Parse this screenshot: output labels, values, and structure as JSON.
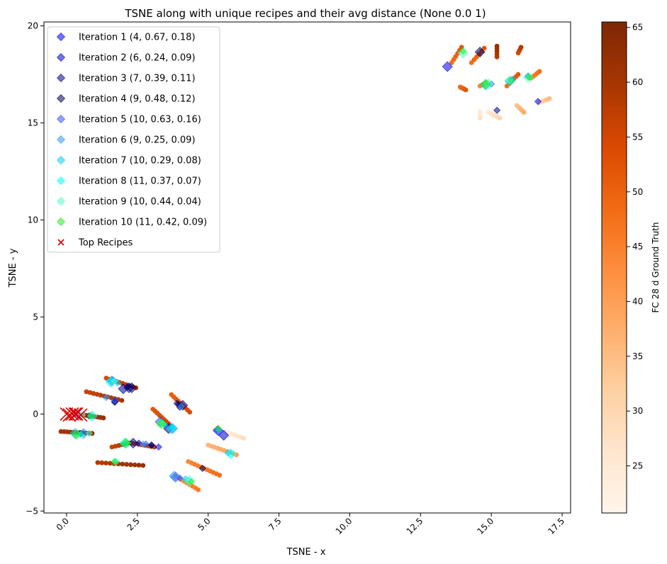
{
  "chart_data": {
    "type": "scatter",
    "title": "TSNE along with unique recipes and their avg distance (None 0.0 1)",
    "xlabel": "TSNE - x",
    "ylabel": "TSNE - y",
    "xlim": [
      -0.8,
      17.8
    ],
    "ylim": [
      -5.1,
      20.2
    ],
    "x_ticks": [
      "0.0",
      "2.5",
      "5.0",
      "7.5",
      "10.0",
      "12.5",
      "15.0",
      "17.5"
    ],
    "y_ticks": [
      "−5",
      "0",
      "5",
      "10",
      "15",
      "20"
    ],
    "x_tick_values": [
      0,
      2.5,
      5,
      7.5,
      10,
      12.5,
      15,
      17.5
    ],
    "y_tick_values": [
      -5,
      0,
      5,
      10,
      15,
      20
    ],
    "grid": false,
    "legend_position": "upper-left",
    "colorbar": {
      "label": "FC 28 d Ground Truth",
      "min": 20.7,
      "max": 65.5,
      "ticks": [
        "25",
        "30",
        "35",
        "40",
        "45",
        "50",
        "55",
        "60",
        "65"
      ],
      "tick_values": [
        25,
        30,
        35,
        40,
        45,
        50,
        55,
        60,
        65
      ],
      "colormap": "Oranges",
      "stops": [
        "#fff5eb",
        "#fee6ce",
        "#fdd0a2",
        "#fdae6b",
        "#fd8d3c",
        "#f16913",
        "#d94801",
        "#a63603",
        "#7f2704"
      ]
    },
    "background_points": {
      "name": "",
      "color_by": "FC 28 d Ground Truth",
      "strands": [
        {
          "from": [
            -0.2,
            -0.9
          ],
          "to": [
            0.9,
            -1.0
          ],
          "n": 11,
          "value": 62
        },
        {
          "from": [
            0.6,
            -0.05
          ],
          "to": [
            1.3,
            -0.2
          ],
          "n": 8,
          "value": 60
        },
        {
          "from": [
            0.7,
            1.15
          ],
          "to": [
            1.95,
            0.7
          ],
          "n": 11,
          "value": 58
        },
        {
          "from": [
            1.4,
            1.85
          ],
          "to": [
            2.45,
            1.35
          ],
          "n": 10,
          "value": 56
        },
        {
          "from": [
            1.1,
            -2.5
          ],
          "to": [
            2.7,
            -2.65
          ],
          "n": 12,
          "value": 60
        },
        {
          "from": [
            1.6,
            -1.7
          ],
          "to": [
            2.2,
            -1.5
          ],
          "n": 6,
          "value": 58
        },
        {
          "from": [
            2.3,
            -1.5
          ],
          "to": [
            3.1,
            -1.7
          ],
          "n": 8,
          "value": 56
        },
        {
          "from": [
            3.05,
            0.25
          ],
          "to": [
            3.75,
            -0.7
          ],
          "n": 10,
          "value": 54
        },
        {
          "from": [
            3.7,
            1.0
          ],
          "to": [
            4.35,
            0.1
          ],
          "n": 9,
          "value": 52
        },
        {
          "from": [
            3.85,
            -3.2
          ],
          "to": [
            4.65,
            -3.9
          ],
          "n": 9,
          "value": 44
        },
        {
          "from": [
            4.3,
            -2.45
          ],
          "to": [
            5.4,
            -3.15
          ],
          "n": 11,
          "value": 46
        },
        {
          "from": [
            5.0,
            -1.6
          ],
          "to": [
            6.0,
            -2.1
          ],
          "n": 10,
          "value": 38
        },
        {
          "from": [
            5.6,
            -0.9
          ],
          "to": [
            6.25,
            -1.25
          ],
          "n": 7,
          "value": 26
        },
        {
          "from": [
            13.6,
            18.1
          ],
          "to": [
            13.95,
            18.9
          ],
          "n": 6,
          "value": 50
        },
        {
          "from": [
            14.3,
            18.1
          ],
          "to": [
            14.75,
            18.85
          ],
          "n": 6,
          "value": 50
        },
        {
          "from": [
            15.2,
            18.4
          ],
          "to": [
            15.2,
            18.95
          ],
          "n": 5,
          "value": 60
        },
        {
          "from": [
            15.95,
            18.6
          ],
          "to": [
            16.05,
            18.9
          ],
          "n": 4,
          "value": 56
        },
        {
          "from": [
            13.9,
            16.85
          ],
          "to": [
            14.1,
            16.7
          ],
          "n": 5,
          "value": 50
        },
        {
          "from": [
            14.6,
            16.9
          ],
          "to": [
            14.8,
            17.05
          ],
          "n": 4,
          "value": 46
        },
        {
          "from": [
            15.55,
            16.9
          ],
          "to": [
            15.95,
            17.5
          ],
          "n": 6,
          "value": 50
        },
        {
          "from": [
            16.4,
            17.3
          ],
          "to": [
            16.7,
            17.65
          ],
          "n": 5,
          "value": 46
        },
        {
          "from": [
            15.9,
            15.9
          ],
          "to": [
            16.15,
            15.55
          ],
          "n": 5,
          "value": 36
        },
        {
          "from": [
            16.7,
            16.05
          ],
          "to": [
            17.05,
            16.25
          ],
          "n": 5,
          "value": 33
        },
        {
          "from": [
            14.9,
            15.55
          ],
          "to": [
            15.3,
            15.25
          ],
          "n": 5,
          "value": 28
        },
        {
          "from": [
            14.6,
            15.6
          ],
          "to": [
            14.6,
            15.25
          ],
          "n": 4,
          "value": 25
        }
      ]
    },
    "series": [
      {
        "name": "Iteration 1 (4, 0.67, 0.18)",
        "color": "#0000ee",
        "points": [
          [
            13.45,
            17.9
          ],
          [
            16.65,
            16.1
          ],
          [
            3.25,
            -1.7
          ],
          [
            5.35,
            -0.85
          ]
        ]
      },
      {
        "name": "Iteration 2 (6, 0.24, 0.09)",
        "color": "#0000cc",
        "points": [
          [
            2.2,
            1.35
          ],
          [
            1.7,
            0.65
          ],
          [
            3.0,
            -1.6
          ],
          [
            5.55,
            -1.1
          ],
          [
            16.3,
            17.4
          ],
          [
            2.55,
            -1.5
          ]
        ]
      },
      {
        "name": "Iteration 3 (7, 0.39, 0.11)",
        "color": "#000088",
        "points": [
          [
            2.35,
            -1.5
          ],
          [
            3.9,
            0.55
          ],
          [
            15.2,
            15.65
          ],
          [
            4.1,
            0.45
          ],
          [
            2.15,
            1.4
          ],
          [
            4.0,
            0.35
          ],
          [
            2.0,
            1.3
          ]
        ]
      },
      {
        "name": "Iteration 4 (9, 0.48, 0.12)",
        "color": "#000055",
        "points": [
          [
            14.6,
            18.65
          ],
          [
            3.95,
            0.5
          ],
          [
            4.8,
            -2.8
          ],
          [
            2.3,
            1.35
          ],
          [
            0.8,
            -0.1
          ],
          [
            0.5,
            -1.0
          ],
          [
            3.6,
            -0.75
          ],
          [
            3.0,
            -1.6
          ],
          [
            1.7,
            0.6
          ]
        ]
      },
      {
        "name": "Iteration 5 (10, 0.63, 0.16)",
        "color": "#3355ff",
        "points": [
          [
            3.85,
            -3.25
          ],
          [
            4.0,
            -3.3
          ],
          [
            1.7,
            0.7
          ],
          [
            3.3,
            -0.4
          ],
          [
            5.3,
            -0.8
          ],
          [
            15.0,
            17.0
          ],
          [
            1.6,
            1.7
          ],
          [
            2.8,
            -1.55
          ],
          [
            3.5,
            -0.6
          ],
          [
            0.4,
            -0.05
          ]
        ]
      },
      {
        "name": "Iteration 6 (9, 0.25, 0.09)",
        "color": "#3399ff",
        "points": [
          [
            3.75,
            -0.75
          ],
          [
            1.4,
            0.85
          ],
          [
            5.4,
            -0.85
          ],
          [
            0.6,
            -1.0
          ],
          [
            2.7,
            -1.55
          ],
          [
            15.75,
            17.25
          ],
          [
            3.8,
            -3.2
          ],
          [
            1.65,
            1.75
          ],
          [
            4.05,
            0.4
          ]
        ]
      },
      {
        "name": "Iteration 7 (10, 0.29, 0.08)",
        "color": "#00ccff",
        "points": [
          [
            3.7,
            -0.75
          ],
          [
            1.6,
            1.75
          ],
          [
            5.7,
            -2.0
          ],
          [
            15.65,
            17.15
          ],
          [
            4.2,
            -3.35
          ],
          [
            2.1,
            -1.5
          ],
          [
            0.3,
            -1.0
          ],
          [
            3.45,
            -0.55
          ],
          [
            1.8,
            1.6
          ],
          [
            14.8,
            16.95
          ]
        ]
      },
      {
        "name": "Iteration 8 (11, 0.37, 0.07)",
        "color": "#00ffff",
        "points": [
          [
            1.55,
            1.65
          ],
          [
            3.75,
            -0.7
          ],
          [
            0.5,
            -1.05
          ],
          [
            5.8,
            -2.05
          ],
          [
            15.7,
            17.2
          ],
          [
            4.3,
            -3.4
          ],
          [
            2.05,
            -1.5
          ],
          [
            1.7,
            -2.45
          ],
          [
            3.35,
            -0.45
          ],
          [
            0.9,
            -0.1
          ],
          [
            16.35,
            17.35
          ]
        ]
      },
      {
        "name": "Iteration 9 (10, 0.44, 0.04)",
        "color": "#55ffcc",
        "points": [
          [
            14.0,
            18.6
          ],
          [
            1.75,
            -2.45
          ],
          [
            0.55,
            -0.05
          ],
          [
            16.3,
            17.35
          ],
          [
            3.4,
            -0.5
          ],
          [
            15.65,
            17.15
          ],
          [
            4.35,
            -3.45
          ],
          [
            1.7,
            1.7
          ],
          [
            0.8,
            -1.0
          ],
          [
            14.9,
            17.0
          ]
        ]
      },
      {
        "name": "Iteration 10 (11, 0.42, 0.09)",
        "color": "#22ee22",
        "points": [
          [
            0.35,
            -1.05
          ],
          [
            4.4,
            -3.5
          ],
          [
            1.7,
            -2.45
          ],
          [
            2.1,
            -1.5
          ],
          [
            5.35,
            -0.75
          ],
          [
            14.0,
            18.7
          ],
          [
            14.8,
            17.0
          ],
          [
            16.35,
            17.35
          ],
          [
            15.7,
            17.2
          ],
          [
            3.35,
            -0.5
          ],
          [
            0.85,
            -0.1
          ]
        ]
      },
      {
        "name": "Top Recipes",
        "color": "#dd0000",
        "marker": "x",
        "points": [
          [
            0.0,
            0.0
          ],
          [
            0.2,
            0.0
          ],
          [
            0.3,
            0.0
          ],
          [
            0.5,
            -0.05
          ],
          [
            0.1,
            -0.05
          ],
          [
            0.35,
            0.0
          ]
        ]
      }
    ]
  }
}
